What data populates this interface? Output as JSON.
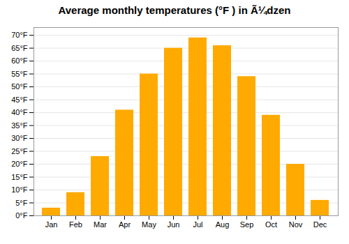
{
  "chart_data": {
    "type": "bar",
    "title": "Average monthly temperatures (°F ) in Ã¼dzen",
    "categories": [
      "Jan",
      "Feb",
      "Mar",
      "Apr",
      "May",
      "Jun",
      "Jul",
      "Aug",
      "Sep",
      "Oct",
      "Nov",
      "Dec"
    ],
    "values": [
      3,
      9,
      23,
      41,
      55,
      65,
      69,
      66,
      54,
      39,
      20,
      6
    ],
    "color": "#FFAA00",
    "ylim": [
      0,
      73
    ],
    "yticks": [
      {
        "value": 0,
        "label": "0°F"
      },
      {
        "value": 5,
        "label": "5°F"
      },
      {
        "value": 10,
        "label": "10°F"
      },
      {
        "value": 15,
        "label": "15°F"
      },
      {
        "value": 20,
        "label": "20°F"
      },
      {
        "value": 25,
        "label": "25°F"
      },
      {
        "value": 30,
        "label": "30°F"
      },
      {
        "value": 35,
        "label": "35°F"
      },
      {
        "value": 40,
        "label": "40°F"
      },
      {
        "value": 45,
        "label": "45°F"
      },
      {
        "value": 50,
        "label": "50°F"
      },
      {
        "value": 55,
        "label": "55°F"
      },
      {
        "value": 60,
        "label": "60°F"
      },
      {
        "value": 65,
        "label": "65°F"
      },
      {
        "value": 70,
        "label": "70°F"
      }
    ],
    "grid": true
  }
}
